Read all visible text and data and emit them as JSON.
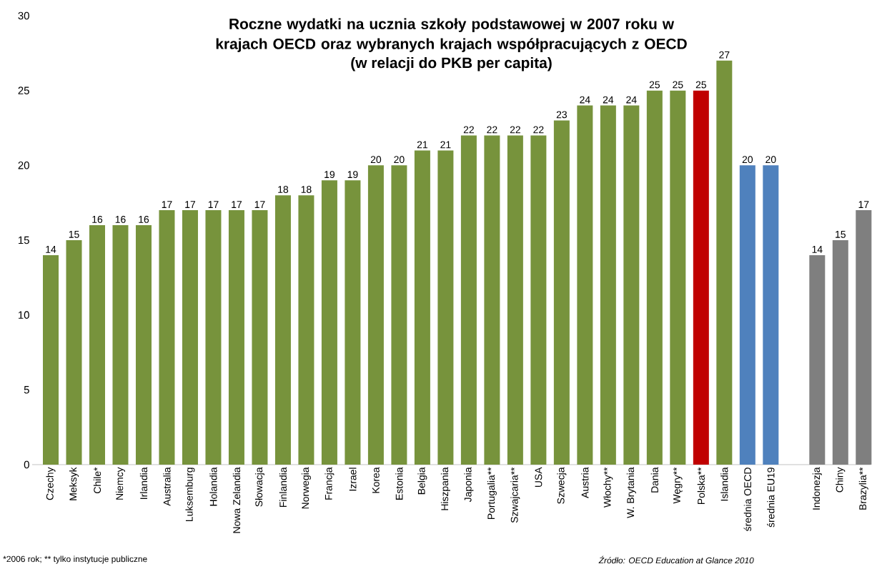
{
  "chart_data": {
    "type": "bar",
    "title": "Roczne wydatki na ucznia szkoły podstawowej w 2007 roku w krajach OECD oraz wybranych krajach współpracujących z OECD",
    "subtitle": "(w relacji do PKB per capita)",
    "categories": [
      "Czechy",
      "Meksyk",
      "Chile*",
      "Niemcy",
      "Irlandia",
      "Australia",
      "Luksemburg",
      "Holandia",
      "Nowa Zelandia",
      "Słowacja",
      "Finlandia",
      "Norwegia",
      "Francja",
      "Izrael",
      "Korea",
      "Estonia",
      "Belgia",
      "Hiszpania",
      "Japonia",
      "Portugalia**",
      "Szwajcaria**",
      "USA",
      "Szwecja",
      "Austria",
      "Włochy**",
      "W. Brytania",
      "Dania",
      "Węgry**",
      "Polska**",
      "Islandia",
      "średnia OECD",
      "średnia EU19",
      null,
      "Indonezja",
      "Chiny",
      "Brazylia**"
    ],
    "values": [
      14,
      15,
      16,
      16,
      16,
      17,
      17,
      17,
      17,
      17,
      18,
      18,
      19,
      19,
      20,
      20,
      21,
      21,
      22,
      22,
      22,
      22,
      23,
      24,
      24,
      24,
      25,
      25,
      25,
      27,
      20,
      20,
      null,
      14,
      15,
      17
    ],
    "colors": [
      "#77933c",
      "#77933c",
      "#77933c",
      "#77933c",
      "#77933c",
      "#77933c",
      "#77933c",
      "#77933c",
      "#77933c",
      "#77933c",
      "#77933c",
      "#77933c",
      "#77933c",
      "#77933c",
      "#77933c",
      "#77933c",
      "#77933c",
      "#77933c",
      "#77933c",
      "#77933c",
      "#77933c",
      "#77933c",
      "#77933c",
      "#77933c",
      "#77933c",
      "#77933c",
      "#77933c",
      "#77933c",
      "#c00000",
      "#77933c",
      "#4f81bd",
      "#4f81bd",
      "#7f7f7f",
      "#7f7f7f",
      "#7f7f7f",
      "#7f7f7f"
    ],
    "ylim": [
      0,
      30
    ],
    "yticks": [
      0,
      5,
      10,
      15,
      20,
      25,
      30
    ],
    "data_labels": true,
    "annotations": [
      "*2006 rok; ** tylko instytucje publiczne",
      "Źródło: OECD Education at Glance 2010"
    ]
  }
}
